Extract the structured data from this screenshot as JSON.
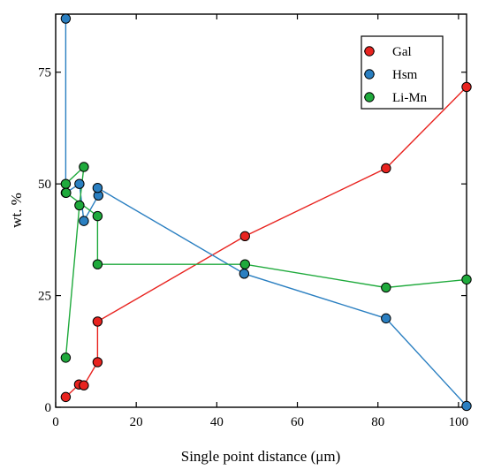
{
  "chart_data": {
    "type": "line",
    "xlabel": "Single point distance (μm)",
    "ylabel": "wt. %",
    "xlim": [
      0,
      102
    ],
    "ylim": [
      0,
      88
    ],
    "xticks": [
      0,
      20,
      40,
      60,
      80,
      100
    ],
    "yticks": [
      0,
      25,
      50,
      75
    ],
    "xtick_labels": [
      "0",
      "20",
      "40",
      "60",
      "80",
      "100"
    ],
    "ytick_labels": [
      "0",
      "25",
      "50",
      "75"
    ],
    "grid": false,
    "legend_position": "top-right",
    "series": [
      {
        "name": "Gal",
        "color": "#e8231f",
        "x": [
          2.5,
          5.8,
          7.0,
          10.4,
          10.4,
          47.0,
          82.0,
          102.0
        ],
        "y": [
          2.3,
          5.1,
          4.9,
          10.1,
          19.2,
          38.3,
          53.5,
          71.7
        ]
      },
      {
        "name": "Hsm",
        "color": "#2a7fc1",
        "x": [
          2.5,
          2.5,
          5.9,
          7.0,
          10.6,
          10.4,
          46.8,
          82.0,
          102.0
        ],
        "y": [
          87.0,
          48.0,
          50.0,
          41.7,
          47.4,
          49.1,
          29.9,
          19.9,
          0.3
        ]
      },
      {
        "name": "Li-Mn",
        "color": "#1faa3c",
        "x": [
          2.5,
          5.9,
          7.0,
          2.5,
          2.6,
          10.4,
          10.4,
          47.0,
          82.0,
          102.0
        ],
        "y": [
          11.1,
          45.2,
          53.8,
          50.0,
          48.0,
          42.8,
          32.0,
          32.0,
          26.8,
          28.6
        ]
      }
    ]
  }
}
